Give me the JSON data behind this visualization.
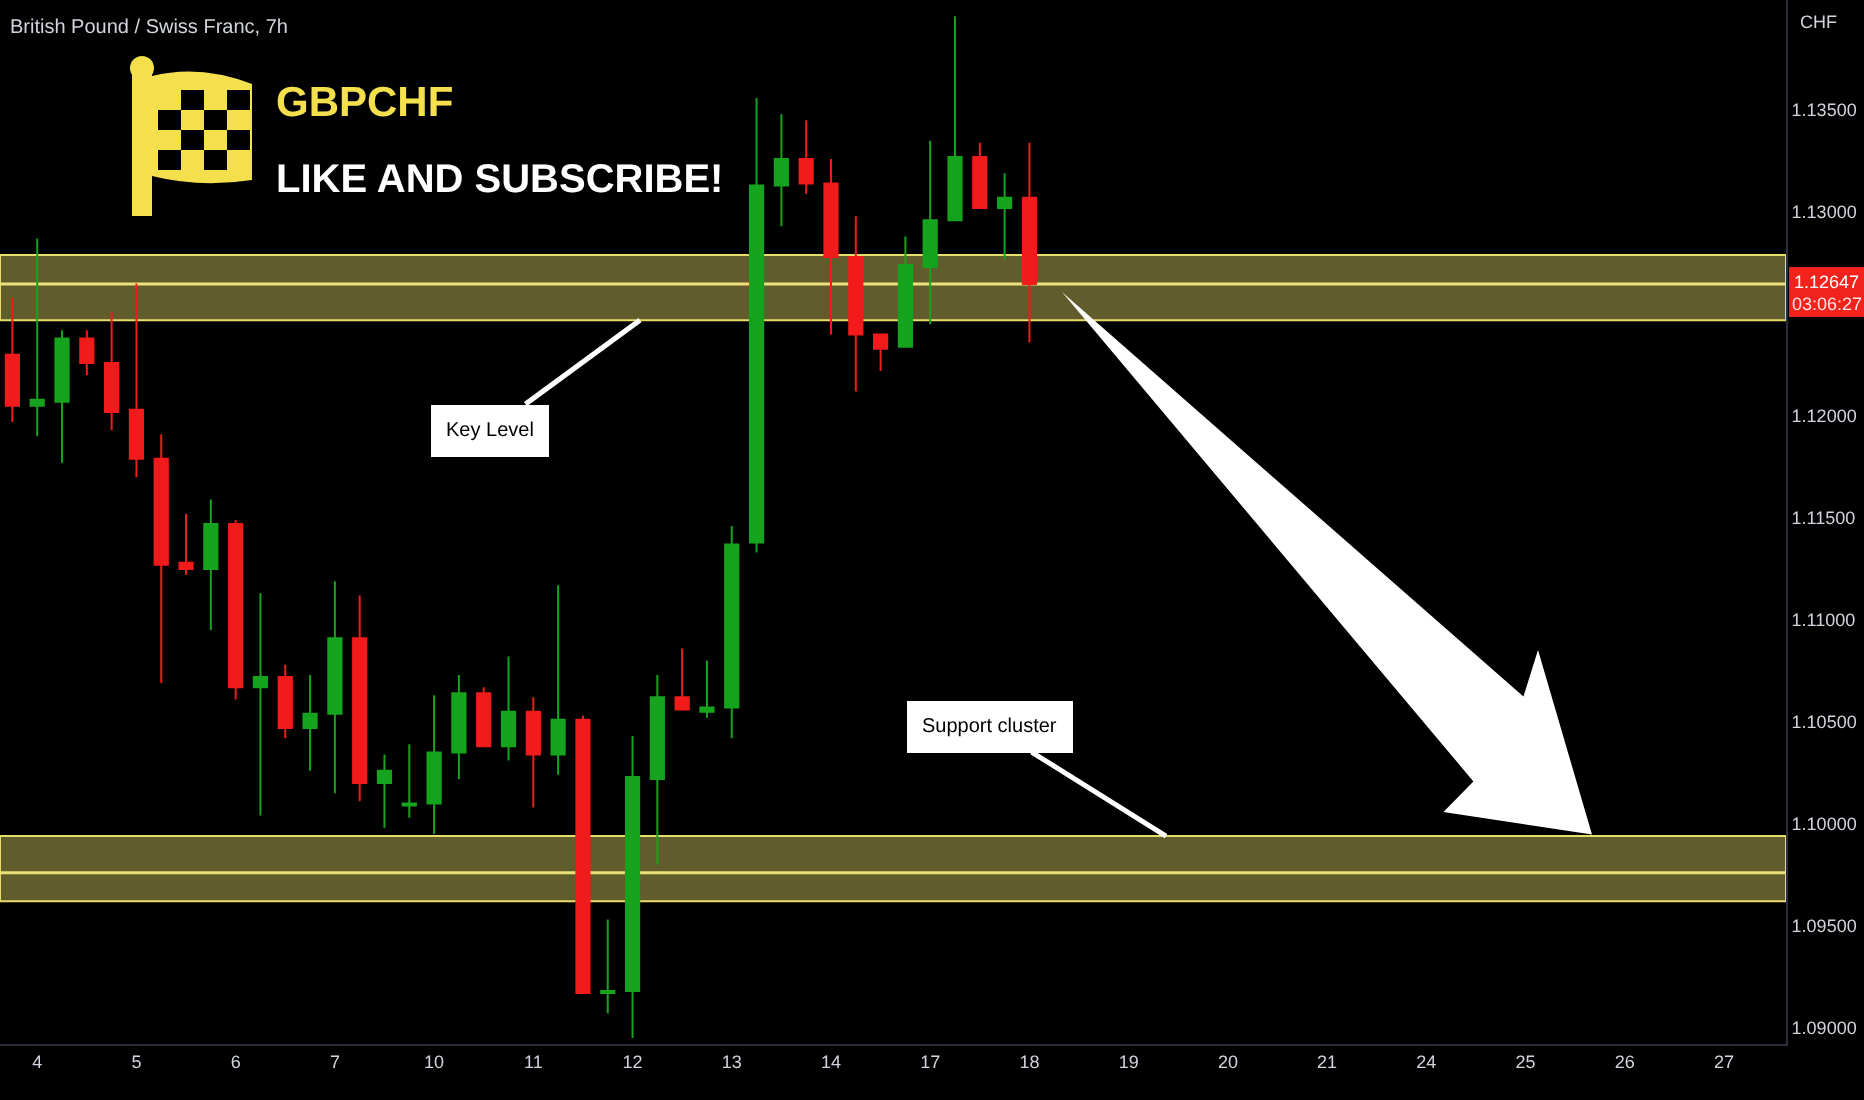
{
  "chart_data": {
    "type": "candlestick",
    "title": "British Pound / Swiss Franc, 7h",
    "subtitle": "GBPCHF",
    "ylabel": "CHF",
    "annotations": [
      "LIKE AND SUBSCRIBE!",
      {
        "text": "03:06:27",
        "y": 1.12647
      }
    ],
    "categories": [
      null,
      "4",
      null,
      null,
      null,
      "5",
      null,
      null,
      null,
      "6",
      null,
      null,
      null,
      "7",
      null,
      null,
      null,
      "10",
      null,
      null,
      null,
      "11",
      null,
      null,
      null,
      "12",
      null,
      null,
      null,
      "13",
      null,
      null,
      null,
      "14",
      null,
      null,
      null,
      "17",
      null,
      null,
      null,
      "18",
      null,
      null,
      null,
      "19",
      null,
      null,
      null,
      "20",
      null,
      null,
      null,
      "21",
      null,
      null,
      null,
      "24",
      null,
      null,
      null,
      "25",
      null,
      null,
      null,
      "26",
      null,
      null,
      null,
      "27",
      null,
      null
    ],
    "ohlc": [
      [
        1.123,
        1.1258,
        1.1197,
        1.1205
      ],
      [
        1.1205,
        1.1287,
        1.119,
        1.1208
      ],
      [
        1.1207,
        1.1242,
        1.1177,
        1.1238
      ],
      [
        1.1238,
        1.1242,
        1.122,
        1.1226
      ],
      [
        1.1226,
        1.1251,
        1.1193,
        1.1202
      ],
      [
        1.1203,
        1.1265,
        1.117,
        1.1179
      ],
      [
        1.1179,
        1.1191,
        1.1069,
        1.1127
      ],
      [
        1.1128,
        1.1152,
        1.1122,
        1.1125
      ],
      [
        1.1125,
        1.1159,
        1.1095,
        1.1147
      ],
      [
        1.1147,
        1.1149,
        1.1061,
        1.1067
      ],
      [
        1.1067,
        1.1113,
        1.1004,
        1.1072
      ],
      [
        1.1072,
        1.1078,
        1.1042,
        1.1047
      ],
      [
        1.1047,
        1.1073,
        1.1026,
        1.1054
      ],
      [
        1.1054,
        1.1119,
        1.1015,
        1.1091
      ],
      [
        1.1091,
        1.1112,
        1.1011,
        1.102
      ],
      [
        1.102,
        1.1034,
        1.0998,
        1.1026
      ],
      [
        1.1009,
        1.1039,
        1.1003,
        1.101
      ],
      [
        1.101,
        1.1063,
        1.0995,
        1.1035
      ],
      [
        1.1035,
        1.1073,
        1.1022,
        1.1064
      ],
      [
        1.1064,
        1.1067,
        1.1038,
        1.1038
      ],
      [
        1.1038,
        1.1082,
        1.1031,
        1.1055
      ],
      [
        1.1055,
        1.1062,
        1.1008,
        1.1034
      ],
      [
        1.1034,
        1.1117,
        1.1024,
        1.1051
      ],
      [
        1.1051,
        1.1053,
        1.0917,
        1.0917
      ],
      [
        1.0917,
        1.0953,
        1.0907,
        1.0918
      ],
      [
        1.0918,
        1.1043,
        1.0895,
        1.1023
      ],
      [
        1.1022,
        1.1073,
        1.098,
        1.1062
      ],
      [
        1.1062,
        1.1086,
        1.1056,
        1.1056
      ],
      [
        1.1055,
        1.108,
        1.1052,
        1.1057
      ],
      [
        1.1057,
        1.1146,
        1.1042,
        1.1137
      ],
      [
        1.1138,
        1.1356,
        1.1133,
        1.1313
      ],
      [
        1.1313,
        1.1348,
        1.1293,
        1.1326
      ],
      [
        1.1326,
        1.1345,
        1.1309,
        1.1314
      ],
      [
        1.1314,
        1.1326,
        1.124,
        1.1278
      ],
      [
        1.1278,
        1.1298,
        1.1212,
        1.124
      ],
      [
        1.124,
        1.124,
        1.1222,
        1.1233
      ],
      [
        1.1234,
        1.1288,
        1.1234,
        1.1274
      ],
      [
        1.1273,
        1.1335,
        1.1245,
        1.1296
      ],
      [
        1.1296,
        1.1396,
        1.1296,
        1.1327
      ],
      [
        1.1327,
        1.1334,
        1.1302,
        1.1302
      ],
      [
        1.1302,
        1.1319,
        1.1277,
        1.1307
      ],
      [
        1.1307,
        1.1334,
        1.1236,
        1.12647
      ],
      null,
      null,
      null,
      null,
      null,
      null,
      null,
      null,
      null,
      null,
      null,
      null,
      null,
      null,
      null,
      null,
      null,
      null,
      null,
      null,
      null,
      null,
      null,
      null,
      null,
      null,
      null,
      null,
      null,
      null
    ],
    "colors": [
      "#f21b1b",
      "#16a31e",
      "#16a31e",
      "#f21b1b",
      "#f21b1b",
      "#f21b1b",
      "#f21b1b",
      "#f21b1b",
      "#16a31e",
      "#f21b1b",
      "#16a31e",
      "#f21b1b",
      "#16a31e",
      "#16a31e",
      "#f21b1b",
      "#16a31e",
      "#16a31e",
      "#16a31e",
      "#16a31e",
      "#f21b1b",
      "#16a31e",
      "#f21b1b",
      "#16a31e",
      "#f21b1b",
      "#16a31e",
      "#16a31e",
      "#16a31e",
      "#f21b1b",
      "#16a31e",
      "#16a31e",
      "#16a31e",
      "#16a31e",
      "#f21b1b",
      "#f21b1b",
      "#f21b1b",
      "#f21b1b",
      "#16a31e",
      "#16a31e",
      "#16a31e",
      "#f21b1b",
      "#16a31e",
      "#f21b1b",
      null,
      null,
      null,
      null,
      null,
      null,
      null,
      null,
      null,
      null,
      null,
      null,
      null,
      null,
      null,
      null,
      null,
      null,
      null,
      null,
      null,
      null,
      null,
      null,
      null,
      null,
      null,
      null,
      null,
      null
    ],
    "ylim": [
      1.0892,
      1.1404
    ],
    "yticks": [
      {
        "value": 1.09,
        "label": "1.09000"
      },
      {
        "value": 1.095,
        "label": "1.09500"
      },
      {
        "value": 1.1,
        "label": "1.10000"
      },
      {
        "value": 1.105,
        "label": "1.10500"
      },
      {
        "value": 1.11,
        "label": "1.11000"
      },
      {
        "value": 1.115,
        "label": "1.11500"
      },
      {
        "value": 1.12,
        "label": "1.12000"
      },
      {
        "value": 1.13,
        "label": "1.13000"
      },
      {
        "value": 1.135,
        "label": "1.13500"
      }
    ],
    "ref_lines": [
      {
        "axis": "y",
        "value": 1.12647,
        "label": "1.12647",
        "color": "#ece27a"
      },
      {
        "axis": "y",
        "value": 1.0976,
        "color": "#ece27a"
      }
    ],
    "bands": [
      {
        "axis": "y",
        "from": 1.1247,
        "to": 1.1279,
        "label": "Key Level",
        "color": "#e8dc6a"
      },
      {
        "axis": "y",
        "from": 1.0962,
        "to": 1.0994,
        "label": "Support cluster",
        "color": "#e8dc6a"
      }
    ]
  }
}
